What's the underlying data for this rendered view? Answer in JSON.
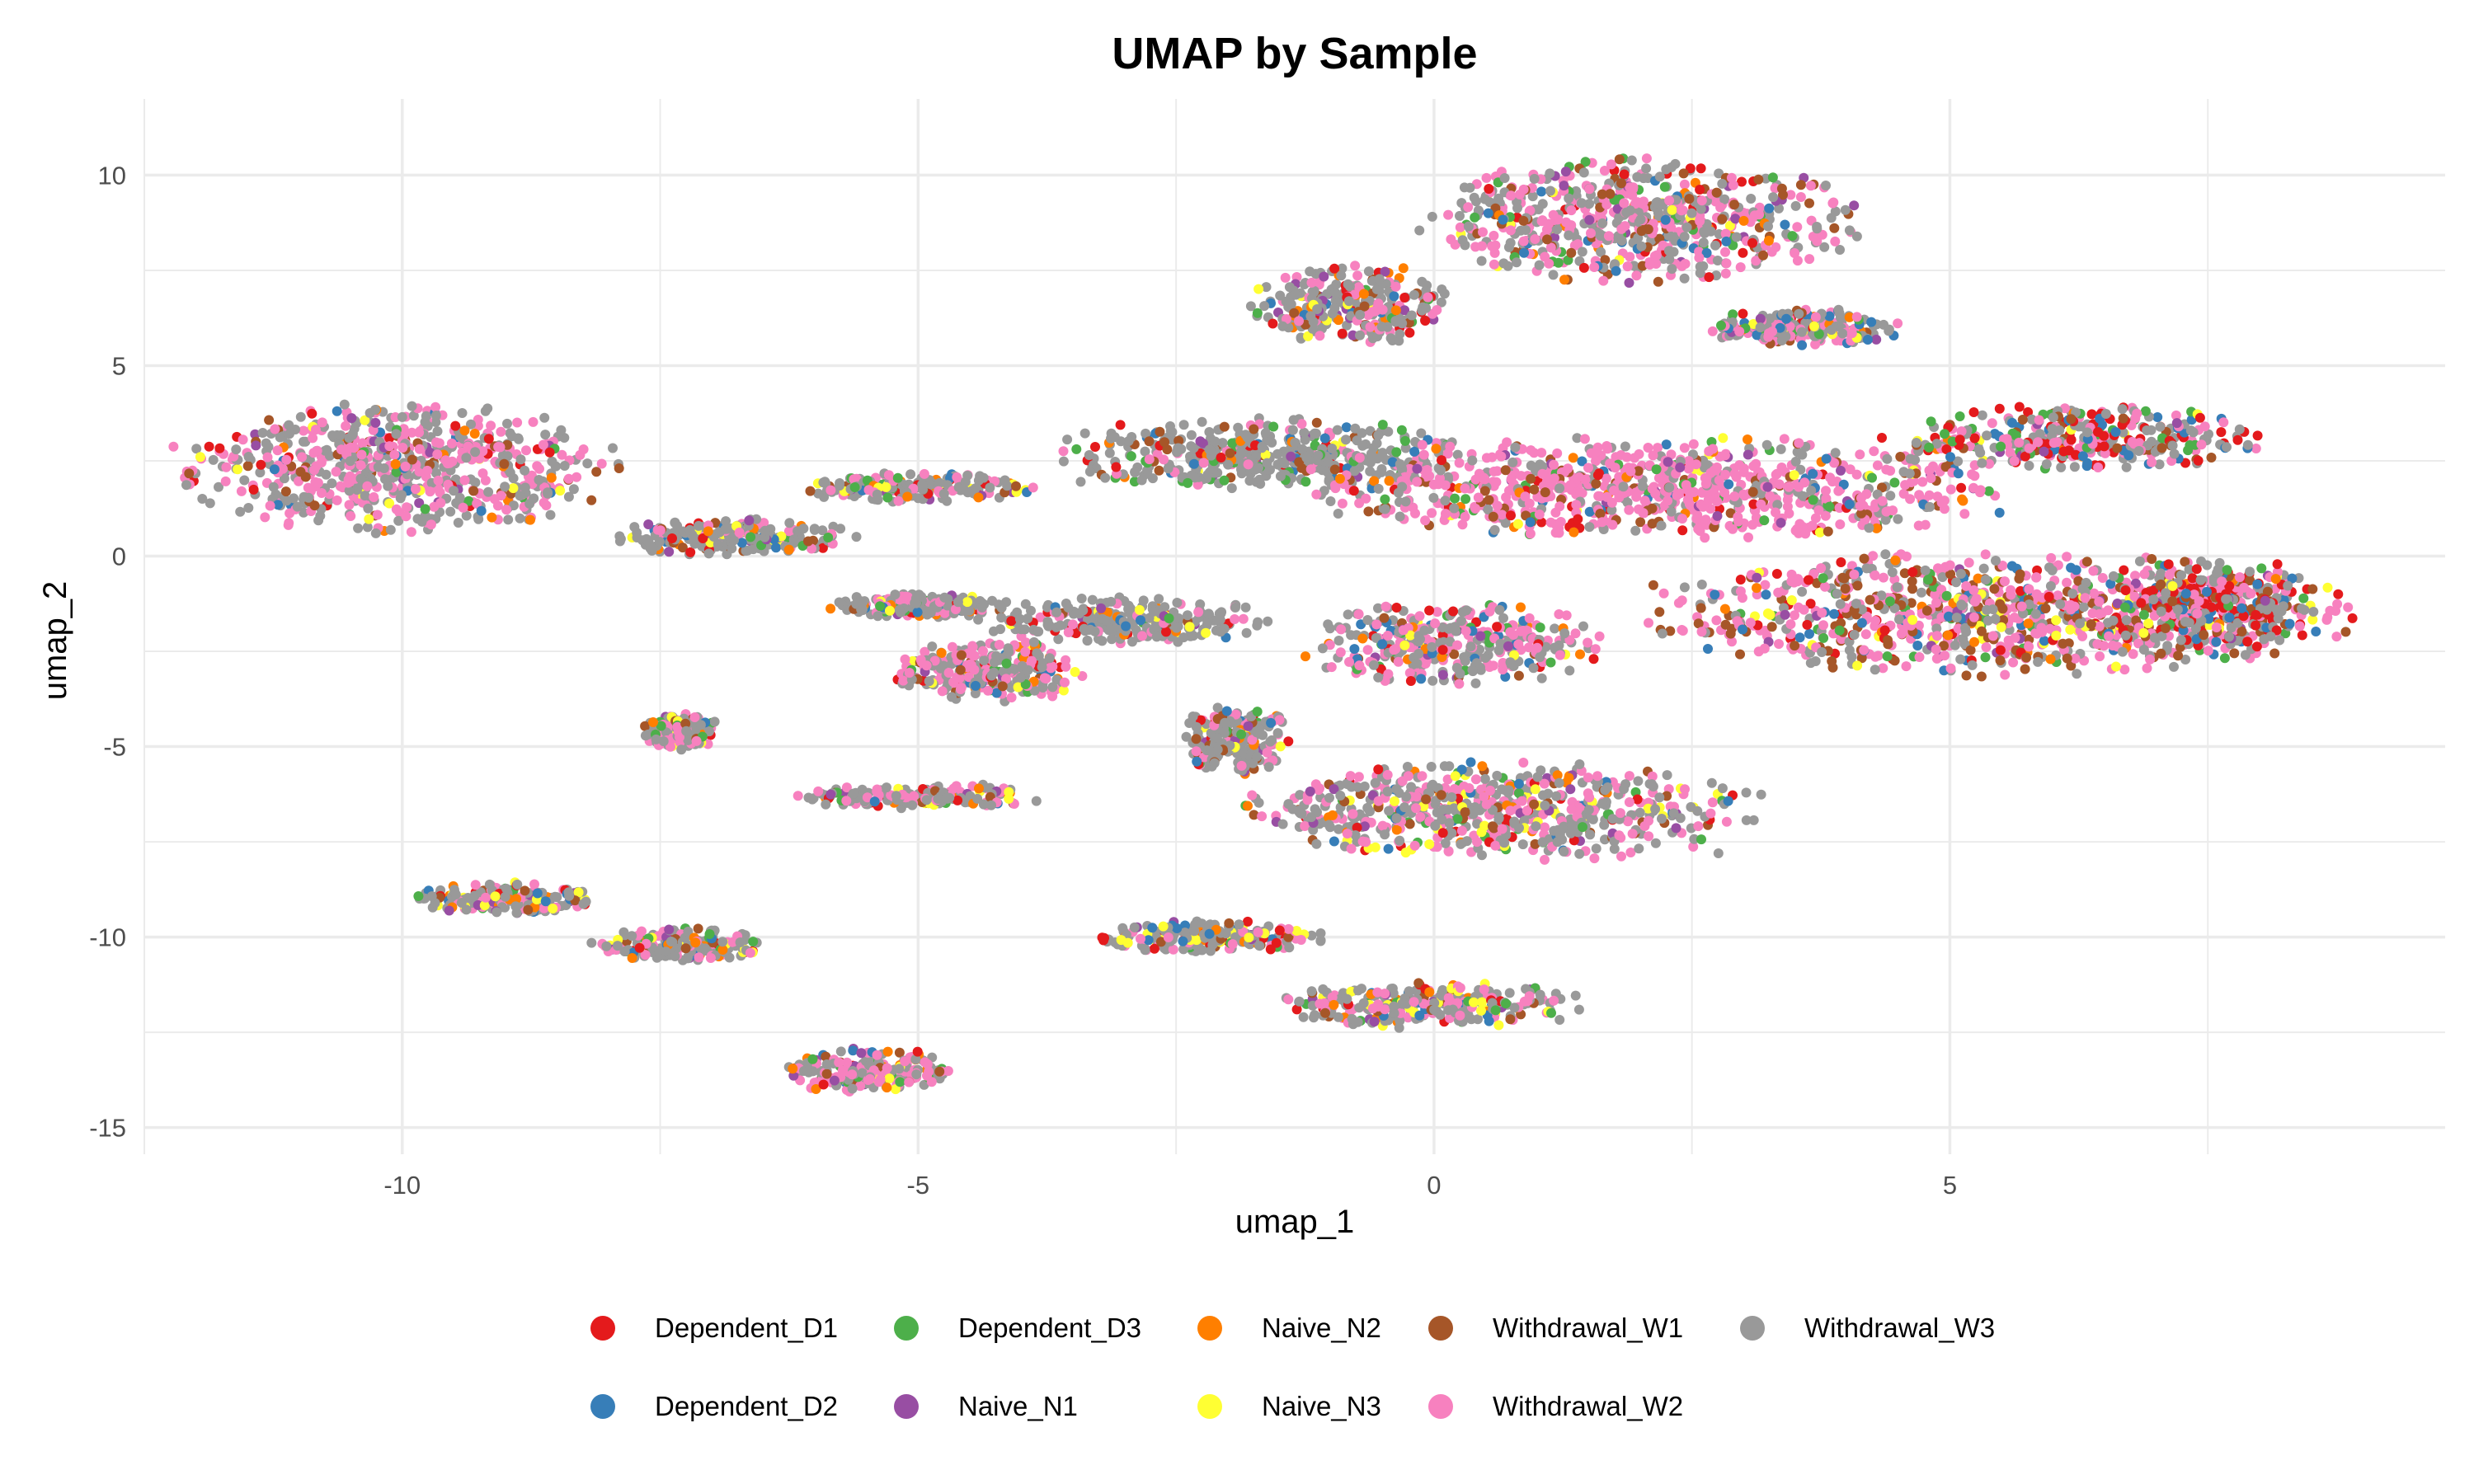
{
  "chart_data": {
    "type": "scatter",
    "title": "UMAP by Sample",
    "xlabel": "umap_1",
    "ylabel": "umap_2",
    "xlim": [
      -12.5,
      9.8
    ],
    "ylim": [
      -15.7,
      12.0
    ],
    "x_ticks": [
      -10,
      -5,
      0,
      5
    ],
    "x_tick_labels": [
      "-10",
      "-5",
      "0",
      "5"
    ],
    "y_ticks": [
      10,
      5,
      0,
      -5,
      -10,
      -15
    ],
    "y_tick_labels": [
      "10",
      "5",
      "0",
      "-5",
      "-10",
      "-15"
    ],
    "grid": true,
    "legend_position": "bottom",
    "series": [
      {
        "name": "Dependent_D1",
        "color": "#E41A1C"
      },
      {
        "name": "Dependent_D2",
        "color": "#377EB8"
      },
      {
        "name": "Dependent_D3",
        "color": "#4DAF4A"
      },
      {
        "name": "Naive_N1",
        "color": "#984EA3"
      },
      {
        "name": "Naive_N2",
        "color": "#FF7F00"
      },
      {
        "name": "Naive_N3",
        "color": "#FFFF33"
      },
      {
        "name": "Withdrawal_W1",
        "color": "#A65628"
      },
      {
        "name": "Withdrawal_W2",
        "color": "#F781BF"
      },
      {
        "name": "Withdrawal_W3",
        "color": "#999999"
      }
    ],
    "clusters": [
      {
        "cx": -10.0,
        "cy": 2.3,
        "rx": 2.0,
        "ry": 1.6,
        "mix": [
          0.03,
          0.03,
          0.02,
          0.02,
          0.02,
          0.01,
          0.07,
          0.4,
          0.4
        ]
      },
      {
        "cx": -6.8,
        "cy": 0.5,
        "rx": 1.1,
        "ry": 0.45,
        "mix": [
          0.04,
          0.03,
          0.04,
          0.03,
          0.05,
          0.04,
          0.04,
          0.15,
          0.58
        ]
      },
      {
        "cx": -5.0,
        "cy": 1.8,
        "rx": 1.1,
        "ry": 0.35,
        "mix": [
          0.04,
          0.03,
          0.04,
          0.03,
          0.05,
          0.04,
          0.04,
          0.15,
          0.58
        ]
      },
      {
        "cx": -7.3,
        "cy": -4.6,
        "rx": 0.35,
        "ry": 0.45,
        "mix": [
          0.04,
          0.03,
          0.05,
          0.03,
          0.05,
          0.03,
          0.05,
          0.32,
          0.4
        ]
      },
      {
        "cx": -9.0,
        "cy": -9.0,
        "rx": 0.8,
        "ry": 0.4,
        "mix": [
          0.04,
          0.04,
          0.04,
          0.03,
          0.05,
          0.05,
          0.05,
          0.2,
          0.5
        ]
      },
      {
        "cx": -7.3,
        "cy": -10.2,
        "rx": 0.8,
        "ry": 0.4,
        "mix": [
          0.04,
          0.04,
          0.04,
          0.03,
          0.05,
          0.05,
          0.05,
          0.2,
          0.5
        ]
      },
      {
        "cx": -5.5,
        "cy": -13.5,
        "rx": 0.8,
        "ry": 0.55,
        "mix": [
          0.04,
          0.04,
          0.04,
          0.03,
          0.05,
          0.02,
          0.04,
          0.4,
          0.34
        ]
      },
      {
        "cx": -5.0,
        "cy": -1.3,
        "rx": 0.8,
        "ry": 0.3,
        "mix": [
          0.03,
          0.03,
          0.03,
          0.02,
          0.03,
          0.03,
          0.03,
          0.1,
          0.7
        ]
      },
      {
        "cx": -4.3,
        "cy": -3.0,
        "rx": 0.9,
        "ry": 0.8,
        "mix": [
          0.03,
          0.03,
          0.03,
          0.02,
          0.03,
          0.03,
          0.03,
          0.35,
          0.45
        ]
      },
      {
        "cx": -3.0,
        "cy": -1.7,
        "rx": 1.3,
        "ry": 0.6,
        "mix": [
          0.03,
          0.03,
          0.03,
          0.02,
          0.03,
          0.03,
          0.03,
          0.1,
          0.7
        ]
      },
      {
        "cx": -5.0,
        "cy": -6.3,
        "rx": 1.1,
        "ry": 0.3,
        "mix": [
          0.03,
          0.03,
          0.03,
          0.02,
          0.04,
          0.05,
          0.03,
          0.25,
          0.52
        ]
      },
      {
        "cx": -1.7,
        "cy": 2.7,
        "rx": 1.9,
        "ry": 0.9,
        "mix": [
          0.03,
          0.03,
          0.08,
          0.02,
          0.02,
          0.03,
          0.07,
          0.08,
          0.64
        ]
      },
      {
        "cx": 2.2,
        "cy": 1.8,
        "rx": 3.3,
        "ry": 1.3,
        "mix": [
          0.03,
          0.03,
          0.05,
          0.02,
          0.02,
          0.03,
          0.08,
          0.55,
          0.19
        ]
      },
      {
        "cx": 5.5,
        "cy": -1.5,
        "rx": 3.2,
        "ry": 1.5,
        "mix": [
          0.05,
          0.05,
          0.05,
          0.02,
          0.02,
          0.03,
          0.2,
          0.38,
          0.2
        ]
      },
      {
        "cx": 7.6,
        "cy": -1.2,
        "rx": 0.9,
        "ry": 1.2,
        "mix": [
          0.22,
          0.12,
          0.03,
          0.02,
          0.02,
          0.02,
          0.12,
          0.15,
          0.3
        ]
      },
      {
        "cx": 6.3,
        "cy": 3.1,
        "rx": 1.6,
        "ry": 0.8,
        "mix": [
          0.18,
          0.08,
          0.1,
          0.02,
          0.02,
          0.02,
          0.08,
          0.2,
          0.3
        ]
      },
      {
        "cx": 2.0,
        "cy": 8.8,
        "rx": 2.0,
        "ry": 1.5,
        "mix": [
          0.03,
          0.03,
          0.06,
          0.02,
          0.02,
          0.03,
          0.1,
          0.35,
          0.36
        ]
      },
      {
        "cx": 3.6,
        "cy": 6.0,
        "rx": 0.9,
        "ry": 0.45,
        "mix": [
          0.03,
          0.06,
          0.06,
          0.02,
          0.04,
          0.03,
          0.06,
          0.2,
          0.5
        ]
      },
      {
        "cx": -0.8,
        "cy": 6.6,
        "rx": 0.9,
        "ry": 1.0,
        "mix": [
          0.06,
          0.04,
          0.06,
          0.03,
          0.05,
          0.06,
          0.05,
          0.15,
          0.5
        ]
      },
      {
        "cx": 0.2,
        "cy": -2.3,
        "rx": 1.4,
        "ry": 1.0,
        "mix": [
          0.03,
          0.05,
          0.05,
          0.02,
          0.03,
          0.03,
          0.04,
          0.35,
          0.4
        ]
      },
      {
        "cx": 0.7,
        "cy": -6.7,
        "rx": 2.4,
        "ry": 1.2,
        "mix": [
          0.04,
          0.03,
          0.05,
          0.02,
          0.03,
          0.04,
          0.06,
          0.3,
          0.43
        ]
      },
      {
        "cx": -1.9,
        "cy": -4.8,
        "rx": 0.5,
        "ry": 0.9,
        "mix": [
          0.04,
          0.03,
          0.05,
          0.02,
          0.03,
          0.04,
          0.06,
          0.15,
          0.58
        ]
      },
      {
        "cx": -2.2,
        "cy": -10.0,
        "rx": 1.1,
        "ry": 0.4,
        "mix": [
          0.05,
          0.04,
          0.04,
          0.02,
          0.04,
          0.06,
          0.04,
          0.12,
          0.59
        ]
      },
      {
        "cx": 0.0,
        "cy": -11.8,
        "rx": 1.4,
        "ry": 0.55,
        "mix": [
          0.06,
          0.04,
          0.06,
          0.03,
          0.04,
          0.09,
          0.04,
          0.2,
          0.44
        ]
      }
    ]
  }
}
